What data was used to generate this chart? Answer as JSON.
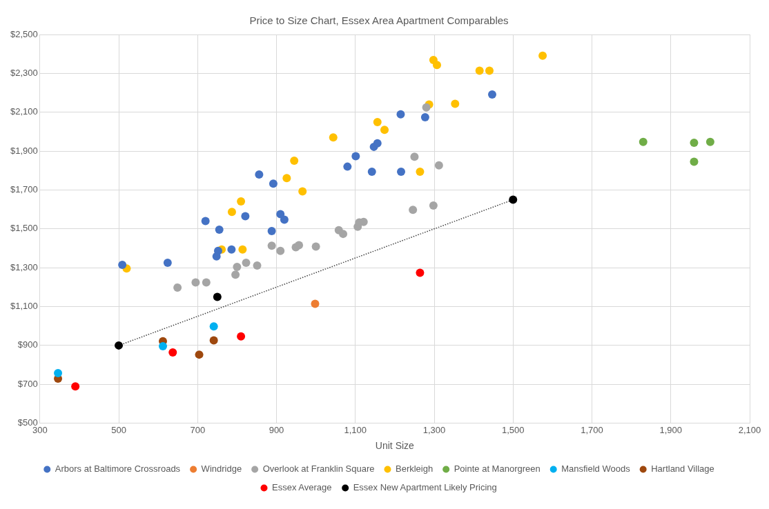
{
  "chart_data": {
    "type": "scatter",
    "title": "Price to Size Chart, Essex Area Apartment Comparables",
    "xlabel": "Unit Size",
    "marker": "circle",
    "grid": true,
    "legend": "bottom",
    "xlim": [
      300,
      2100
    ],
    "xticks": [
      300,
      500,
      700,
      900,
      {
        "value": 1100,
        "label": "1,100"
      },
      {
        "value": 1300,
        "label": "1,300"
      },
      {
        "value": 1500,
        "label": "1,500"
      },
      {
        "value": 1700,
        "label": "1,700"
      },
      {
        "value": 1900,
        "label": "1,900"
      },
      {
        "value": 2100,
        "label": "2,100"
      }
    ],
    "ylim": [
      500,
      2500
    ],
    "yticks": [
      {
        "value": 500,
        "label": "$500"
      },
      {
        "value": 700,
        "label": "$700"
      },
      {
        "value": 900,
        "label": "$900"
      },
      {
        "value": 1100,
        "label": "$1,100"
      },
      {
        "value": 1300,
        "label": "$1,300"
      },
      {
        "value": 1500,
        "label": "$1,500"
      },
      {
        "value": 1700,
        "label": "$1,700"
      },
      {
        "value": 1900,
        "label": "$1,900"
      },
      {
        "value": 2100,
        "label": "$2,100"
      },
      {
        "value": 2300,
        "label": "$2,300"
      },
      {
        "value": 2500,
        "label": "$2,500"
      }
    ],
    "series": [
      {
        "name": "Arbors at Baltimore Crossroads",
        "color": "#4472c4",
        "x": [
          509,
          624,
          856,
          892,
          821,
          910,
          920,
          720,
          755,
          888,
          786,
          752,
          748,
          1215,
          1277,
          1447,
          1101,
          1080,
          1147,
          1156,
          1142,
          1216
        ],
        "values": [
          1315,
          1325,
          1780,
          1733,
          1565,
          1576,
          1547,
          1540,
          1496,
          1489,
          1394,
          1387,
          1358,
          2089,
          2074,
          2191,
          1874,
          1820,
          1922,
          1940,
          1794,
          1794
        ]
      },
      {
        "name": "Windridge",
        "color": "#ed7d31",
        "x": [
          998
        ],
        "values": [
          1114
        ]
      },
      {
        "name": "Overlook at Franklin Square",
        "color": "#a5a5a5",
        "x": [
          649,
          695,
          722,
          796,
          800,
          823,
          851,
          888,
          910,
          949,
          957,
          1000,
          1058,
          1069,
          1106,
          1110,
          1121,
          1246,
          1298,
          1250,
          1312,
          1280
        ],
        "values": [
          1198,
          1224,
          1224,
          1264,
          1304,
          1325,
          1311,
          1413,
          1387,
          1405,
          1416,
          1409,
          1493,
          1474,
          1511,
          1533,
          1536,
          1598,
          1620,
          1871,
          1827,
          2125
        ]
      },
      {
        "name": "Berkleigh",
        "color": "#ffc000",
        "x": [
          520,
          761,
          814,
          787,
          810,
          926,
          945,
          966,
          1044,
          1298,
          1307,
          1415,
          1440,
          1287,
          1353,
          1156,
          1174,
          1264,
          1575
        ],
        "values": [
          1296,
          1394,
          1394,
          1587,
          1641,
          1761,
          1851,
          1693,
          1970,
          2369,
          2343,
          2314,
          2314,
          2140,
          2143,
          2049,
          2009,
          1794,
          2391
        ]
      },
      {
        "name": "Pointe at Manorgreen",
        "color": "#70ad47",
        "x": [
          1830,
          1959,
          2000,
          1959
        ],
        "values": [
          1947,
          1943,
          1947,
          1845
        ]
      },
      {
        "name": "Mansfield Woods",
        "color": "#00b0f0",
        "x": [
          346,
          612,
          741
        ],
        "values": [
          758,
          896,
          998
        ]
      },
      {
        "name": "Hartland Village",
        "color": "#9e480e",
        "x": [
          346,
          612,
          704,
          741
        ],
        "values": [
          729,
          922,
          853,
          926
        ]
      },
      {
        "name": "Essex Average",
        "color": "#ff0000",
        "x": [
          390,
          637,
          810,
          1264
        ],
        "values": [
          689,
          864,
          947,
          1274
        ]
      },
      {
        "name": "Essex New Apartment Likely Pricing",
        "color": "#000000",
        "x": [
          500,
          750,
          1500
        ],
        "values": [
          900,
          1150,
          1650
        ]
      },
      {
        "type": "line",
        "color": "#404040",
        "line_style": "dotted",
        "marker": "none",
        "x": [
          500,
          1500
        ],
        "values": [
          900,
          1650
        ]
      }
    ]
  }
}
